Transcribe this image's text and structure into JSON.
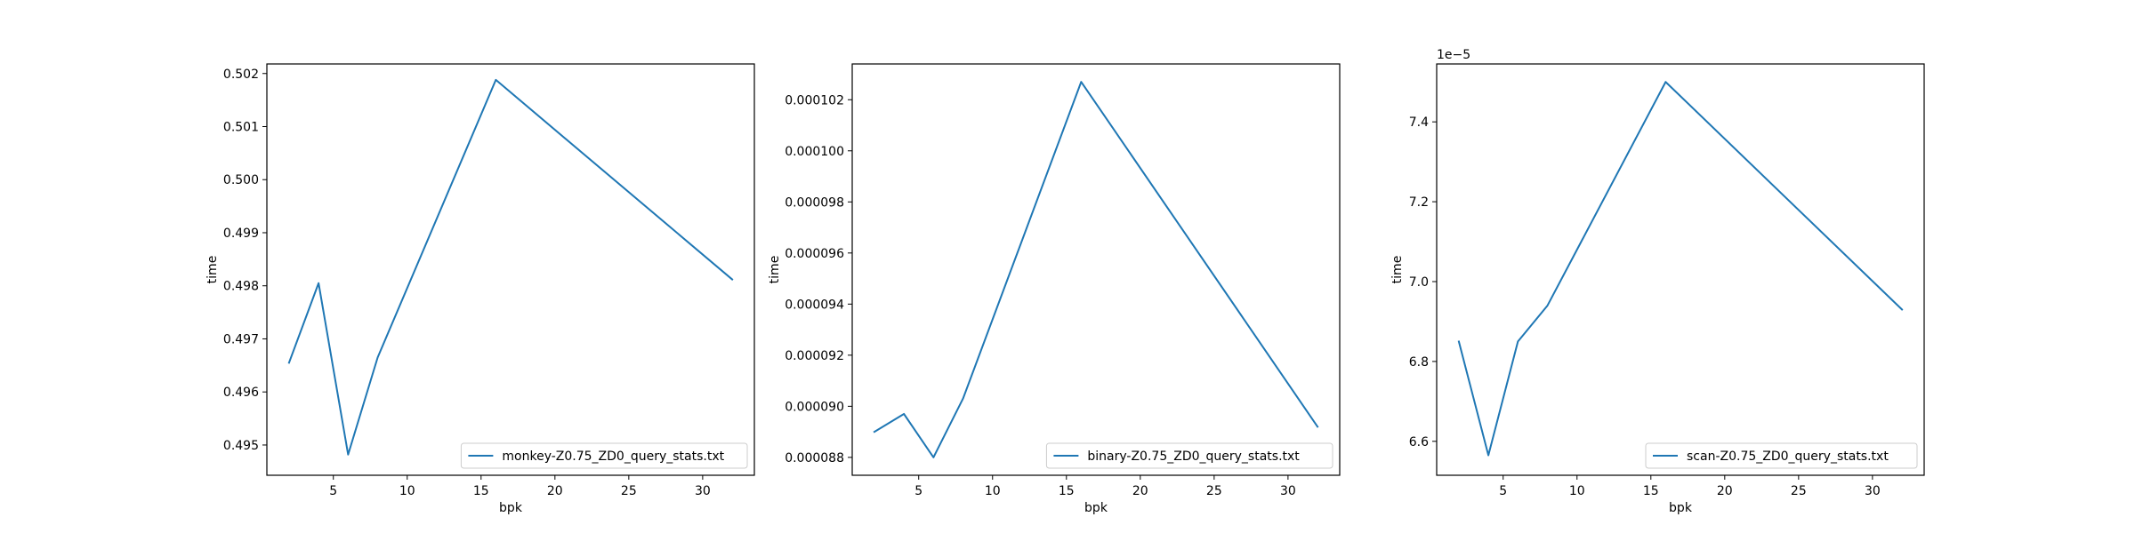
{
  "colors": {
    "line": "#1f77b4",
    "axis": "#000000",
    "legend_border": "#cccccc",
    "background": "#ffffff"
  },
  "chart_data": [
    {
      "type": "line",
      "title": "",
      "xlabel": "bpk",
      "ylabel": "time",
      "offset_label": "",
      "xlim": [
        0.5,
        33.5
      ],
      "ylim": [
        0.49443,
        0.50218
      ],
      "xticks": [
        5,
        10,
        15,
        20,
        25,
        30
      ],
      "xtick_labels": [
        "5",
        "10",
        "15",
        "20",
        "25",
        "30"
      ],
      "yticks": [
        0.495,
        0.496,
        0.497,
        0.498,
        0.499,
        0.5,
        0.501,
        0.502
      ],
      "ytick_labels": [
        "0.495",
        "0.496",
        "0.497",
        "0.498",
        "0.499",
        "0.500",
        "0.501",
        "0.502"
      ],
      "grid": false,
      "legend_position": "lower right",
      "series": [
        {
          "name": "monkey-Z0.75_ZD0_query_stats.txt",
          "x": [
            2,
            4,
            6,
            8,
            16,
            32
          ],
          "y": [
            0.49655,
            0.49805,
            0.49482,
            0.49665,
            0.50188,
            0.49812
          ]
        }
      ]
    },
    {
      "type": "line",
      "title": "",
      "xlabel": "bpk",
      "ylabel": "time",
      "offset_label": "",
      "xlim": [
        0.5,
        33.5
      ],
      "ylim": [
        8.73e-05,
        0.0001034
      ],
      "xticks": [
        5,
        10,
        15,
        20,
        25,
        30
      ],
      "xtick_labels": [
        "5",
        "10",
        "15",
        "20",
        "25",
        "30"
      ],
      "yticks": [
        8.8e-05,
        9e-05,
        9.2e-05,
        9.4e-05,
        9.6e-05,
        9.8e-05,
        0.0001,
        0.000102
      ],
      "ytick_labels": [
        "0.000088",
        "0.000090",
        "0.000092",
        "0.000094",
        "0.000096",
        "0.000098",
        "0.000100",
        "0.000102"
      ],
      "grid": false,
      "legend_position": "lower right",
      "series": [
        {
          "name": "binary-Z0.75_ZD0_query_stats.txt",
          "x": [
            2,
            4,
            6,
            8,
            16,
            32
          ],
          "y": [
            8.9e-05,
            8.97e-05,
            8.8e-05,
            9.03e-05,
            0.0001027,
            8.92e-05
          ]
        }
      ]
    },
    {
      "type": "line",
      "title": "",
      "xlabel": "bpk",
      "ylabel": "time",
      "offset_label": "1e−5",
      "xlim": [
        0.5,
        33.5
      ],
      "ylim": [
        6.515,
        7.545
      ],
      "xticks": [
        5,
        10,
        15,
        20,
        25,
        30
      ],
      "xtick_labels": [
        "5",
        "10",
        "15",
        "20",
        "25",
        "30"
      ],
      "yticks": [
        6.6,
        6.8,
        7.0,
        7.2,
        7.4
      ],
      "ytick_labels": [
        "6.6",
        "6.8",
        "7.0",
        "7.2",
        "7.4"
      ],
      "grid": false,
      "legend_position": "lower right",
      "series": [
        {
          "name": "scan-Z0.75_ZD0_query_stats.txt",
          "x": [
            2,
            4,
            6,
            8,
            16,
            32
          ],
          "y": [
            6.85,
            6.565,
            6.85,
            6.94,
            7.5,
            6.93
          ]
        }
      ]
    }
  ]
}
